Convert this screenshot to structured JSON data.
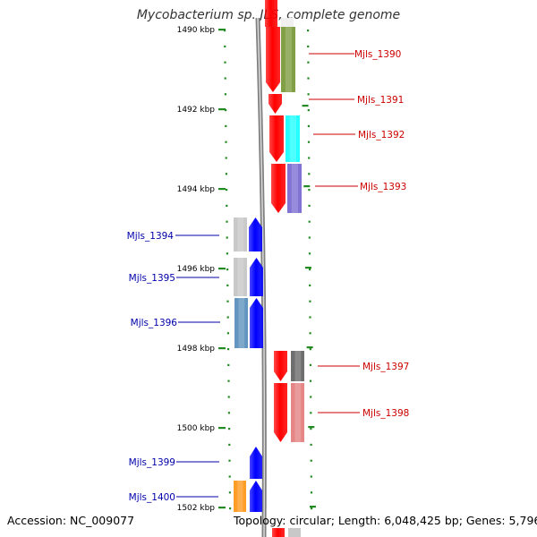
{
  "title": "Mycobacterium sp. JLS, complete genome",
  "footer": {
    "accession": "Accession: NC_009077",
    "summary": "Topology: circular; Length: 6,048,425 bp; Genes: 5,796"
  },
  "colors": {
    "forward_label": "#cc0000",
    "reverse_label": "#0000aa",
    "tick": "#228b22",
    "backbone": "#808080"
  },
  "scale_ticks": [
    "1490 kbp",
    "1492 kbp",
    "1494 kbp",
    "1496 kbp",
    "1498 kbp",
    "1500 kbp",
    "1502 kbp"
  ],
  "genes": [
    {
      "label": "Mjls_1390",
      "strand": "+",
      "cog_color": "#6b8e23"
    },
    {
      "label": "Mjls_1391",
      "strand": "+",
      "cog_color": null
    },
    {
      "label": "Mjls_1392",
      "strand": "+",
      "cog_color": "#00ffff"
    },
    {
      "label": "Mjls_1393",
      "strand": "+",
      "cog_color": "#6a5acd"
    },
    {
      "label": "Mjls_1394",
      "strand": "-",
      "cog_color": "#c0c0c0"
    },
    {
      "label": "Mjls_1395",
      "strand": "-",
      "cog_color": "#c0c0c0"
    },
    {
      "label": "Mjls_1396",
      "strand": "-",
      "cog_color": "#4682b4"
    },
    {
      "label": "Mjls_1397",
      "strand": "+",
      "cog_color": "#555555"
    },
    {
      "label": "Mjls_1398",
      "strand": "+",
      "cog_color": "#e07070"
    },
    {
      "label": "Mjls_1399",
      "strand": "-",
      "cog_color": null
    },
    {
      "label": "Mjls_1400",
      "strand": "-",
      "cog_color": "#ff8c00"
    }
  ]
}
